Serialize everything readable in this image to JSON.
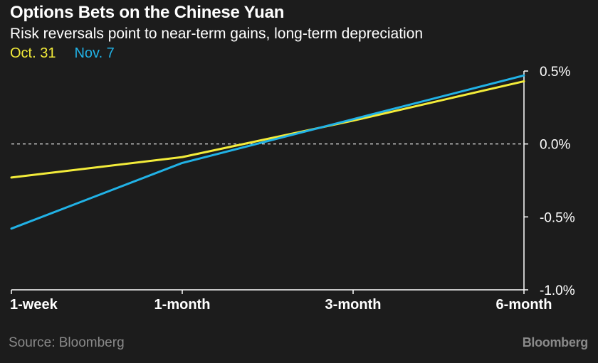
{
  "chart_data": {
    "type": "line",
    "title": "Options Bets on the Chinese Yuan",
    "subtitle": "Risk reversals point to near-term gains, long-term depreciation",
    "categories": [
      "1-week",
      "1-month",
      "3-month",
      "6-month"
    ],
    "ylim": [
      -1.0,
      0.5
    ],
    "yticks": [
      {
        "value": 0.5,
        "label": "0.5%"
      },
      {
        "value": 0.0,
        "label": "0.0%"
      },
      {
        "value": -0.5,
        "label": "-0.5%"
      },
      {
        "value": -1.0,
        "label": "-1.0%"
      }
    ],
    "zero_line": "dashed",
    "grid": false,
    "legend_position": "top-left",
    "series": [
      {
        "name": "Oct. 31",
        "color": "#f3ec3a",
        "values": [
          -0.23,
          -0.09,
          0.16,
          0.43
        ]
      },
      {
        "name": "Nov. 7",
        "color": "#21b2e6",
        "values": [
          -0.58,
          -0.13,
          0.17,
          0.47
        ]
      }
    ]
  },
  "footer": {
    "source": "Source: Bloomberg",
    "brand": "Bloomberg"
  }
}
